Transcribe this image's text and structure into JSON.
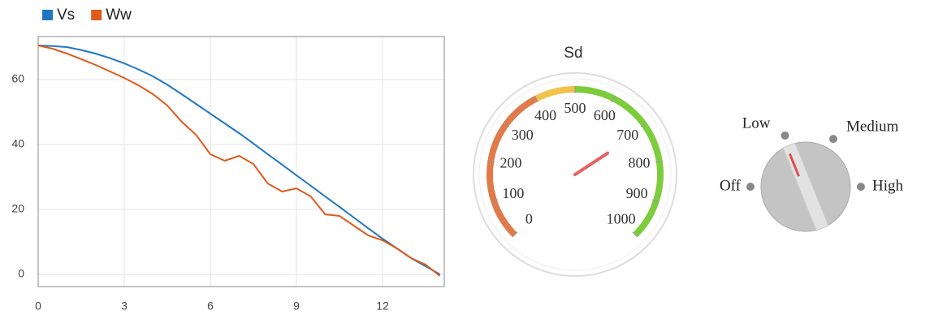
{
  "chart_data": [
    {
      "type": "line",
      "x": [
        0,
        0.5,
        1,
        1.5,
        2,
        2.5,
        3,
        3.5,
        4,
        4.5,
        5,
        5.5,
        6,
        6.5,
        7,
        7.5,
        8,
        8.5,
        9,
        9.5,
        10,
        10.5,
        11,
        11.5,
        12,
        12.5,
        13,
        13.5,
        14
      ],
      "series": [
        {
          "name": "Vs",
          "color": "#1f77c4",
          "values": [
            70.5,
            70.3,
            70,
            69.1,
            68,
            66.6,
            65,
            63.1,
            61,
            58.4,
            55.5,
            52.5,
            49.5,
            46.5,
            43.5,
            40.3,
            37,
            33.8,
            30.5,
            27.3,
            24,
            20.8,
            17.5,
            14.2,
            11,
            8,
            5,
            2.5,
            0
          ]
        },
        {
          "name": "Ww",
          "color": "#e05a1c",
          "values": [
            70.5,
            69.5,
            68,
            66.3,
            64.5,
            62.5,
            60.5,
            58.2,
            55.5,
            52,
            47,
            43,
            37,
            35,
            36.5,
            34,
            28,
            25.5,
            26.5,
            24,
            18.5,
            18,
            15,
            12,
            10.5,
            8,
            5,
            3,
            -0.5
          ]
        }
      ],
      "xlim": [
        0,
        14.15
      ],
      "xticks": [
        0,
        3,
        6,
        9,
        12
      ],
      "ylim": [
        -3.75,
        73.25
      ],
      "yticks": [
        0,
        20,
        40,
        60
      ],
      "grid": true,
      "legend": "top-left"
    },
    {
      "type": "gauge",
      "title": "Sd",
      "value": 710,
      "lim": [
        0,
        1000
      ],
      "ticks": [
        0,
        100,
        200,
        300,
        400,
        500,
        600,
        700,
        800,
        900,
        1000
      ],
      "bands": [
        {
          "from": 0,
          "to": 400,
          "color": "#e07a4a"
        },
        {
          "from": 400,
          "to": 500,
          "color": "#f2c24a"
        },
        {
          "from": 500,
          "to": 1000,
          "color": "#7ccc3c"
        }
      ],
      "needle_color": "#e86060"
    }
  ],
  "knob": {
    "options": [
      "Off",
      "Low",
      "Medium",
      "High"
    ],
    "selected": 1
  }
}
